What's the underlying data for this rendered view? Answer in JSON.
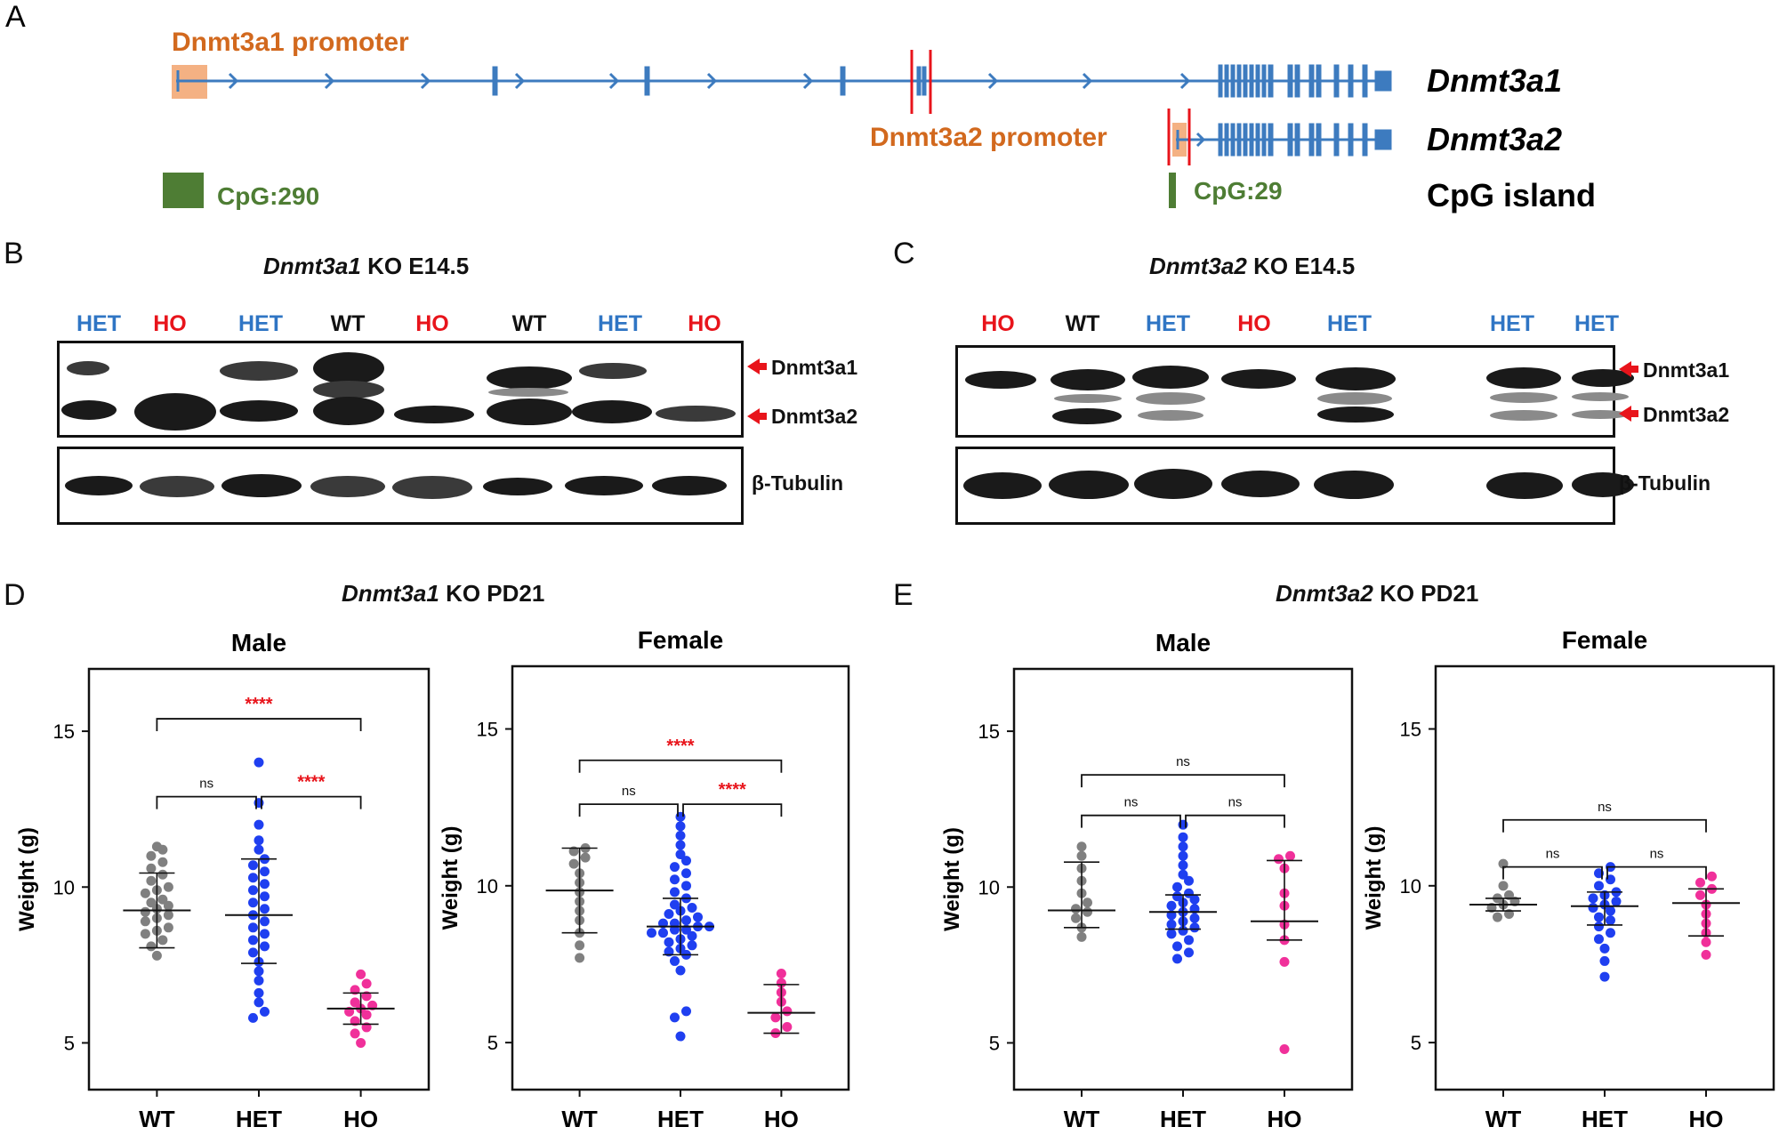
{
  "panel_a": {
    "letter": "A",
    "promoter1": "Dnmt3a1 promoter",
    "promoter2": "Dnmt3a2 promoter",
    "track1": "Dnmt3a1",
    "track2": "Dnmt3a2",
    "track3": "CpG island",
    "cpg1": "CpG:290",
    "cpg2": "CpG:29"
  },
  "panel_b": {
    "letter": "B",
    "title_gene": "Dnmt3a1",
    "title_rest": "KO E14.5",
    "lanes": [
      "HET",
      "HO",
      "HET",
      "WT",
      "HO",
      "WT",
      "HET",
      "HO"
    ],
    "bands": [
      "Dnmt3a1",
      "Dnmt3a2",
      "β-Tubulin"
    ]
  },
  "panel_c": {
    "letter": "C",
    "title_gene": "Dnmt3a2",
    "title_rest": "KO E14.5",
    "lanes": [
      "HO",
      "WT",
      "HET",
      "HO",
      "HET",
      "HET",
      "HET"
    ],
    "bands": [
      "Dnmt3a1",
      "Dnmt3a2",
      "β-Tubulin"
    ]
  },
  "panel_d": {
    "letter": "D",
    "title_gene": "Dnmt3a1",
    "title_rest": "KO PD21"
  },
  "panel_e": {
    "letter": "E",
    "title_gene": "Dnmt3a2",
    "title_rest": "KO PD21"
  },
  "colors": {
    "wt": "#808080",
    "het": "#1f3ff0",
    "ho": "#f0309a",
    "sig": "#e8141b",
    "gene": "#3d7bbf",
    "cpg": "#4e7d34",
    "promoter": "#d2691e"
  },
  "chart_data": [
    {
      "id": "d-male",
      "type": "scatter",
      "title": "Male",
      "ylabel": "Weight (g)",
      "categories": [
        "WT",
        "HET",
        "HO"
      ],
      "ylim": [
        3.5,
        17
      ],
      "yticks": [
        5,
        10,
        15
      ],
      "series": [
        {
          "name": "WT",
          "mean": 9.25,
          "sd_low": 8.05,
          "sd_high": 10.45,
          "values": [
            7.8,
            8.1,
            8.3,
            8.5,
            8.6,
            8.7,
            8.9,
            9.0,
            9.1,
            9.2,
            9.3,
            9.4,
            9.5,
            9.6,
            9.8,
            9.9,
            10.0,
            10.2,
            10.4,
            10.6,
            10.8,
            11.0,
            11.2,
            11.3
          ]
        },
        {
          "name": "HET",
          "mean": 9.1,
          "sd_low": 7.55,
          "sd_high": 10.9,
          "values": [
            5.8,
            6.0,
            6.3,
            6.6,
            7.0,
            7.3,
            7.6,
            7.9,
            8.1,
            8.3,
            8.5,
            8.7,
            8.9,
            9.1,
            9.3,
            9.5,
            9.7,
            9.9,
            10.1,
            10.3,
            10.5,
            10.7,
            10.9,
            11.2,
            11.5,
            12.0,
            12.7,
            14.0
          ]
        },
        {
          "name": "HO",
          "mean": 6.1,
          "sd_low": 5.6,
          "sd_high": 6.6,
          "values": [
            5.0,
            5.3,
            5.5,
            5.7,
            5.9,
            6.0,
            6.1,
            6.2,
            6.3,
            6.5,
            6.7,
            6.9,
            7.2
          ]
        }
      ],
      "brackets": [
        {
          "from": "WT",
          "to": "HET",
          "label": "ns",
          "y": 12.9
        },
        {
          "from": "HET",
          "to": "HO",
          "label": "****",
          "y": 12.9
        },
        {
          "from": "WT",
          "to": "HO",
          "label": "****",
          "y": 15.4
        }
      ]
    },
    {
      "id": "d-female",
      "type": "scatter",
      "title": "Female",
      "ylabel": "Weight (g)",
      "categories": [
        "WT",
        "HET",
        "HO"
      ],
      "ylim": [
        3.5,
        17
      ],
      "yticks": [
        5,
        10,
        15
      ],
      "series": [
        {
          "name": "WT",
          "mean": 9.85,
          "sd_low": 8.5,
          "sd_high": 11.2,
          "values": [
            7.7,
            8.1,
            8.5,
            8.9,
            9.2,
            9.5,
            9.8,
            10.1,
            10.4,
            10.7,
            10.9,
            11.1,
            11.2
          ]
        },
        {
          "name": "HET",
          "mean": 8.7,
          "sd_low": 7.8,
          "sd_high": 9.6,
          "values": [
            5.2,
            5.8,
            6.0,
            7.3,
            7.6,
            7.8,
            7.9,
            8.0,
            8.1,
            8.2,
            8.3,
            8.4,
            8.5,
            8.5,
            8.6,
            8.6,
            8.7,
            8.7,
            8.8,
            8.8,
            8.9,
            9.0,
            9.1,
            9.2,
            9.3,
            9.4,
            9.6,
            9.8,
            10.0,
            10.2,
            10.4,
            10.6,
            10.8,
            11.0,
            11.3,
            11.6,
            11.9,
            12.2
          ]
        },
        {
          "name": "HO",
          "mean": 5.95,
          "sd_low": 5.3,
          "sd_high": 6.85,
          "values": [
            5.3,
            5.5,
            5.8,
            6.0,
            6.3,
            6.6,
            6.9,
            7.2
          ]
        }
      ],
      "brackets": [
        {
          "from": "WT",
          "to": "HET",
          "label": "ns",
          "y": 12.6
        },
        {
          "from": "HET",
          "to": "HO",
          "label": "****",
          "y": 12.6
        },
        {
          "from": "WT",
          "to": "HO",
          "label": "****",
          "y": 14.0
        }
      ]
    },
    {
      "id": "e-male",
      "type": "scatter",
      "title": "Male",
      "ylabel": "Weight (g)",
      "categories": [
        "WT",
        "HET",
        "HO"
      ],
      "ylim": [
        3.5,
        17
      ],
      "yticks": [
        5,
        10,
        15
      ],
      "series": [
        {
          "name": "WT",
          "mean": 9.25,
          "sd_low": 8.7,
          "sd_high": 10.8,
          "values": [
            8.4,
            8.7,
            9.0,
            9.2,
            9.3,
            9.5,
            9.8,
            10.2,
            10.6,
            11.0,
            11.3
          ]
        },
        {
          "name": "HET",
          "mean": 9.2,
          "sd_low": 8.65,
          "sd_high": 9.75,
          "values": [
            7.7,
            7.9,
            8.1,
            8.3,
            8.5,
            8.6,
            8.7,
            8.8,
            8.9,
            9.0,
            9.1,
            9.2,
            9.3,
            9.4,
            9.5,
            9.6,
            9.7,
            9.8,
            10.0,
            10.2,
            10.4,
            10.7,
            11.0,
            11.3,
            11.6,
            12.0
          ]
        },
        {
          "name": "HO",
          "mean": 8.9,
          "sd_low": 8.3,
          "sd_high": 10.85,
          "values": [
            4.8,
            7.6,
            8.3,
            8.8,
            9.4,
            9.8,
            10.6,
            10.9,
            11.0
          ]
        }
      ],
      "brackets": [
        {
          "from": "WT",
          "to": "HET",
          "label": "ns",
          "y": 12.3
        },
        {
          "from": "HET",
          "to": "HO",
          "label": "ns",
          "y": 12.3
        },
        {
          "from": "WT",
          "to": "HO",
          "label": "ns",
          "y": 13.6
        }
      ]
    },
    {
      "id": "e-female",
      "type": "scatter",
      "title": "Female",
      "ylabel": "Weight (g)",
      "categories": [
        "WT",
        "HET",
        "HO"
      ],
      "ylim": [
        3.5,
        17
      ],
      "yticks": [
        5,
        10,
        15
      ],
      "series": [
        {
          "name": "WT",
          "mean": 9.4,
          "sd_low": 9.2,
          "sd_high": 9.6,
          "values": [
            9.0,
            9.1,
            9.3,
            9.4,
            9.5,
            9.6,
            9.7,
            10.0,
            10.7
          ]
        },
        {
          "name": "HET",
          "mean": 9.35,
          "sd_low": 8.75,
          "sd_high": 9.8,
          "values": [
            7.1,
            7.6,
            8.0,
            8.3,
            8.5,
            8.7,
            8.9,
            9.0,
            9.2,
            9.3,
            9.4,
            9.5,
            9.6,
            9.7,
            9.8,
            10.0,
            10.2,
            10.4,
            10.6
          ]
        },
        {
          "name": "HO",
          "mean": 9.45,
          "sd_low": 8.4,
          "sd_high": 9.9,
          "values": [
            7.8,
            8.2,
            8.5,
            8.8,
            9.1,
            9.4,
            9.7,
            9.9,
            10.1,
            10.3
          ]
        }
      ],
      "brackets": [
        {
          "from": "WT",
          "to": "HET",
          "label": "ns",
          "y": 10.6
        },
        {
          "from": "HET",
          "to": "HO",
          "label": "ns",
          "y": 10.6
        },
        {
          "from": "WT",
          "to": "HO",
          "label": "ns",
          "y": 12.1
        }
      ]
    }
  ]
}
